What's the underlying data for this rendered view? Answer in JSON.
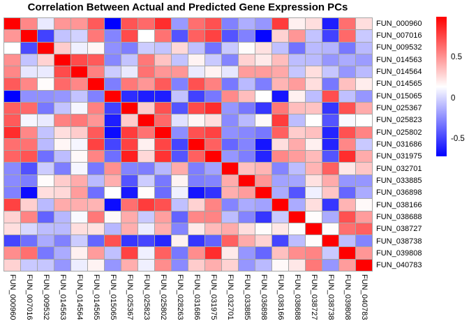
{
  "chart_data": {
    "type": "heatmap",
    "title": "Correlation Between Actual and Predicted Gene Expression PCs",
    "rows": [
      "FUN_000960",
      "FUN_007016",
      "FUN_009532",
      "FUN_014563",
      "FUN_014564",
      "FUN_014565",
      "FUN_015065",
      "FUN_025367",
      "FUN_025823",
      "FUN_025802",
      "FUN_031686",
      "FUN_031975",
      "FUN_032701",
      "FUN_033885",
      "FUN_036898",
      "FUN_038166",
      "FUN_038688",
      "FUN_038727",
      "FUN_038738",
      "FUN_039808",
      "FUN_040783"
    ],
    "columns": [
      "FUN_000960",
      "FUN_007016",
      "FUN_009532",
      "FUN_014563",
      "FUN_014564",
      "FUN_014565",
      "FUN_015065",
      "FUN_025367",
      "FUN_025823",
      "FUN_025802",
      "FUN_028263",
      "FUN_031686",
      "FUN_031975",
      "FUN_032701",
      "FUN_033885",
      "FUN_036898",
      "FUN_038166",
      "FUN_038688",
      "FUN_038727",
      "FUN_038738",
      "FUN_039808",
      "FUN_040783"
    ],
    "values": [
      [
        1.0,
        0.55,
        0.08,
        0.5,
        0.5,
        0.7,
        -0.7,
        0.72,
        0.65,
        0.85,
        -0.19,
        0.63,
        0.73,
        -0.27,
        -0.12,
        -0.2,
        0.8,
        0.2,
        0.26,
        -0.6,
        0.63,
        0.26
      ],
      [
        0.5,
        1.0,
        -0.48,
        -0.05,
        0.0,
        0.6,
        -0.26,
        0.75,
        0.15,
        0.62,
        -0.42,
        0.68,
        0.78,
        -0.42,
        -0.27,
        -0.68,
        0.3,
        0.5,
        -0.05,
        -0.48,
        0.65,
        -0.03
      ],
      [
        0.15,
        -0.45,
        1.0,
        0.32,
        0.1,
        0.18,
        -0.22,
        -0.28,
        -0.02,
        -0.05,
        0.28,
        -0.06,
        -0.32,
        -0.03,
        0.16,
        0.25,
        -0.06,
        -0.32,
        -0.08,
        -0.1,
        -0.3,
        -0.08
      ],
      [
        0.52,
        -0.05,
        0.3,
        1.0,
        0.75,
        0.7,
        -0.25,
        -0.05,
        0.6,
        0.35,
        -0.05,
        0.19,
        -0.03,
        -0.26,
        0.3,
        0.22,
        0.37,
        -0.07,
        -0.08,
        -0.2,
        -0.13,
        -0.18
      ],
      [
        0.55,
        0.07,
        0.08,
        0.75,
        1.0,
        0.57,
        -0.02,
        0.08,
        0.62,
        0.5,
        0.5,
        0.08,
        0.19,
        0.07,
        0.48,
        0.48,
        0.44,
        -0.04,
        0.26,
        -0.04,
        -0.2,
        -0.08
      ],
      [
        0.7,
        0.55,
        0.16,
        0.65,
        0.55,
        1.0,
        -0.28,
        0.6,
        0.5,
        0.7,
        -0.27,
        0.73,
        0.57,
        -0.3,
        -0.08,
        -0.28,
        0.4,
        0.48,
        0.26,
        -0.3,
        0.36,
        0.21
      ],
      [
        -0.7,
        -0.22,
        -0.22,
        -0.2,
        -0.05,
        -0.27,
        1.0,
        -0.55,
        -0.6,
        -0.6,
        -0.05,
        -0.48,
        -0.3,
        0.54,
        0.37,
        0.15,
        -0.63,
        0.2,
        -0.07,
        0.74,
        -0.06,
        -0.2
      ],
      [
        0.68,
        0.65,
        -0.3,
        -0.05,
        0.12,
        0.57,
        -0.48,
        1.0,
        0.32,
        0.73,
        -0.42,
        0.75,
        0.85,
        -0.2,
        -0.3,
        -0.52,
        0.6,
        0.37,
        0.35,
        -0.52,
        0.73,
        0.43
      ],
      [
        0.7,
        0.12,
        0.08,
        0.57,
        0.6,
        0.5,
        -0.6,
        0.32,
        1.0,
        0.65,
        0.05,
        0.18,
        0.26,
        -0.24,
        -0.08,
        0.17,
        0.8,
        -0.07,
        0.15,
        -0.42,
        0.13,
        0.15
      ],
      [
        0.85,
        0.55,
        -0.05,
        0.26,
        0.32,
        0.7,
        -0.66,
        0.8,
        0.62,
        1.0,
        -0.23,
        0.73,
        0.78,
        -0.22,
        -0.25,
        -0.3,
        0.68,
        0.32,
        0.36,
        -0.58,
        0.73,
        0.56
      ],
      [
        0.63,
        0.62,
        -0.08,
        0.18,
        0.12,
        0.78,
        -0.47,
        0.78,
        0.2,
        0.77,
        -0.47,
        1.0,
        0.68,
        -0.36,
        -0.26,
        -0.63,
        0.26,
        0.43,
        0.2,
        -0.58,
        0.55,
        -0.03
      ],
      [
        0.67,
        0.72,
        -0.33,
        -0.07,
        0.17,
        0.56,
        -0.33,
        0.9,
        0.28,
        0.83,
        -0.42,
        0.68,
        1.0,
        -0.2,
        -0.28,
        -0.58,
        0.55,
        0.48,
        0.38,
        -0.42,
        0.85,
        0.43
      ],
      [
        -0.24,
        -0.43,
        -0.02,
        -0.28,
        0.12,
        -0.3,
        0.52,
        -0.26,
        -0.28,
        -0.09,
        0.43,
        -0.28,
        -0.16,
        1.0,
        0.36,
        0.4,
        -0.26,
        -0.07,
        0.4,
        0.68,
        0.23,
        0.34
      ],
      [
        -0.24,
        -0.28,
        0.16,
        0.32,
        0.43,
        -0.08,
        0.42,
        -0.42,
        -0.02,
        -0.3,
        0.19,
        -0.28,
        -0.26,
        0.43,
        1.0,
        0.5,
        -0.16,
        -0.15,
        0.25,
        0.43,
        -0.2,
        -0.2
      ],
      [
        -0.27,
        -0.66,
        0.26,
        0.28,
        0.48,
        -0.33,
        0.15,
        -0.62,
        0.16,
        -0.34,
        0.1,
        -0.63,
        -0.53,
        0.42,
        0.48,
        1.0,
        -0.13,
        -0.42,
        0.1,
        0.34,
        -0.36,
        -0.13
      ],
      [
        0.78,
        0.31,
        -0.08,
        0.43,
        0.42,
        0.4,
        -0.66,
        0.63,
        0.8,
        0.73,
        -0.06,
        0.3,
        0.56,
        -0.26,
        -0.13,
        -0.16,
        1.0,
        -0.13,
        0.26,
        -0.52,
        0.4,
        0.17
      ],
      [
        0.3,
        0.56,
        -0.37,
        -0.09,
        0.13,
        0.6,
        0.17,
        0.43,
        -0.03,
        0.47,
        -0.37,
        0.55,
        0.56,
        -0.07,
        -0.26,
        -0.52,
        -0.03,
        1.0,
        0.16,
        -0.13,
        0.73,
        0.48
      ],
      [
        0.26,
        0.02,
        -0.07,
        -0.08,
        0.26,
        0.25,
        -0.09,
        0.42,
        0.09,
        0.42,
        -0.26,
        0.22,
        0.38,
        0.43,
        0.26,
        0.16,
        0.23,
        0.16,
        1.0,
        0.16,
        0.63,
        0.68
      ],
      [
        -0.47,
        -0.33,
        -0.13,
        -0.27,
        -0.02,
        -0.36,
        0.73,
        -0.52,
        -0.47,
        -0.57,
        0.2,
        -0.52,
        -0.37,
        0.68,
        0.43,
        0.3,
        -0.47,
        -0.07,
        0.16,
        1.0,
        -0.07,
        -0.26
      ],
      [
        0.53,
        0.63,
        -0.3,
        -0.13,
        0.2,
        0.48,
        -0.06,
        0.78,
        0.1,
        0.68,
        -0.3,
        0.53,
        0.85,
        0.22,
        -0.2,
        -0.36,
        0.36,
        0.53,
        0.56,
        -0.03,
        1.0,
        0.5
      ],
      [
        0.3,
        -0.03,
        -0.04,
        -0.2,
        0.09,
        0.19,
        -0.2,
        0.42,
        0.1,
        0.53,
        -0.24,
        0.32,
        0.42,
        0.3,
        -0.2,
        -0.08,
        0.17,
        0.23,
        0.6,
        -0.2,
        0.48,
        1.0
      ]
    ],
    "color_scale": {
      "min": -0.7,
      "max": 1.0,
      "min_color": "#0000ff",
      "mid_color": "#ffffff",
      "max_color": "#ff0000"
    },
    "grid_color": "#a6a6a6",
    "legend_position": "right",
    "colorbar_ticks": [
      {
        "label": "0.5",
        "value": 0.5
      },
      {
        "label": "0",
        "value": 0.0
      },
      {
        "label": "-0.5",
        "value": -0.5
      }
    ]
  }
}
